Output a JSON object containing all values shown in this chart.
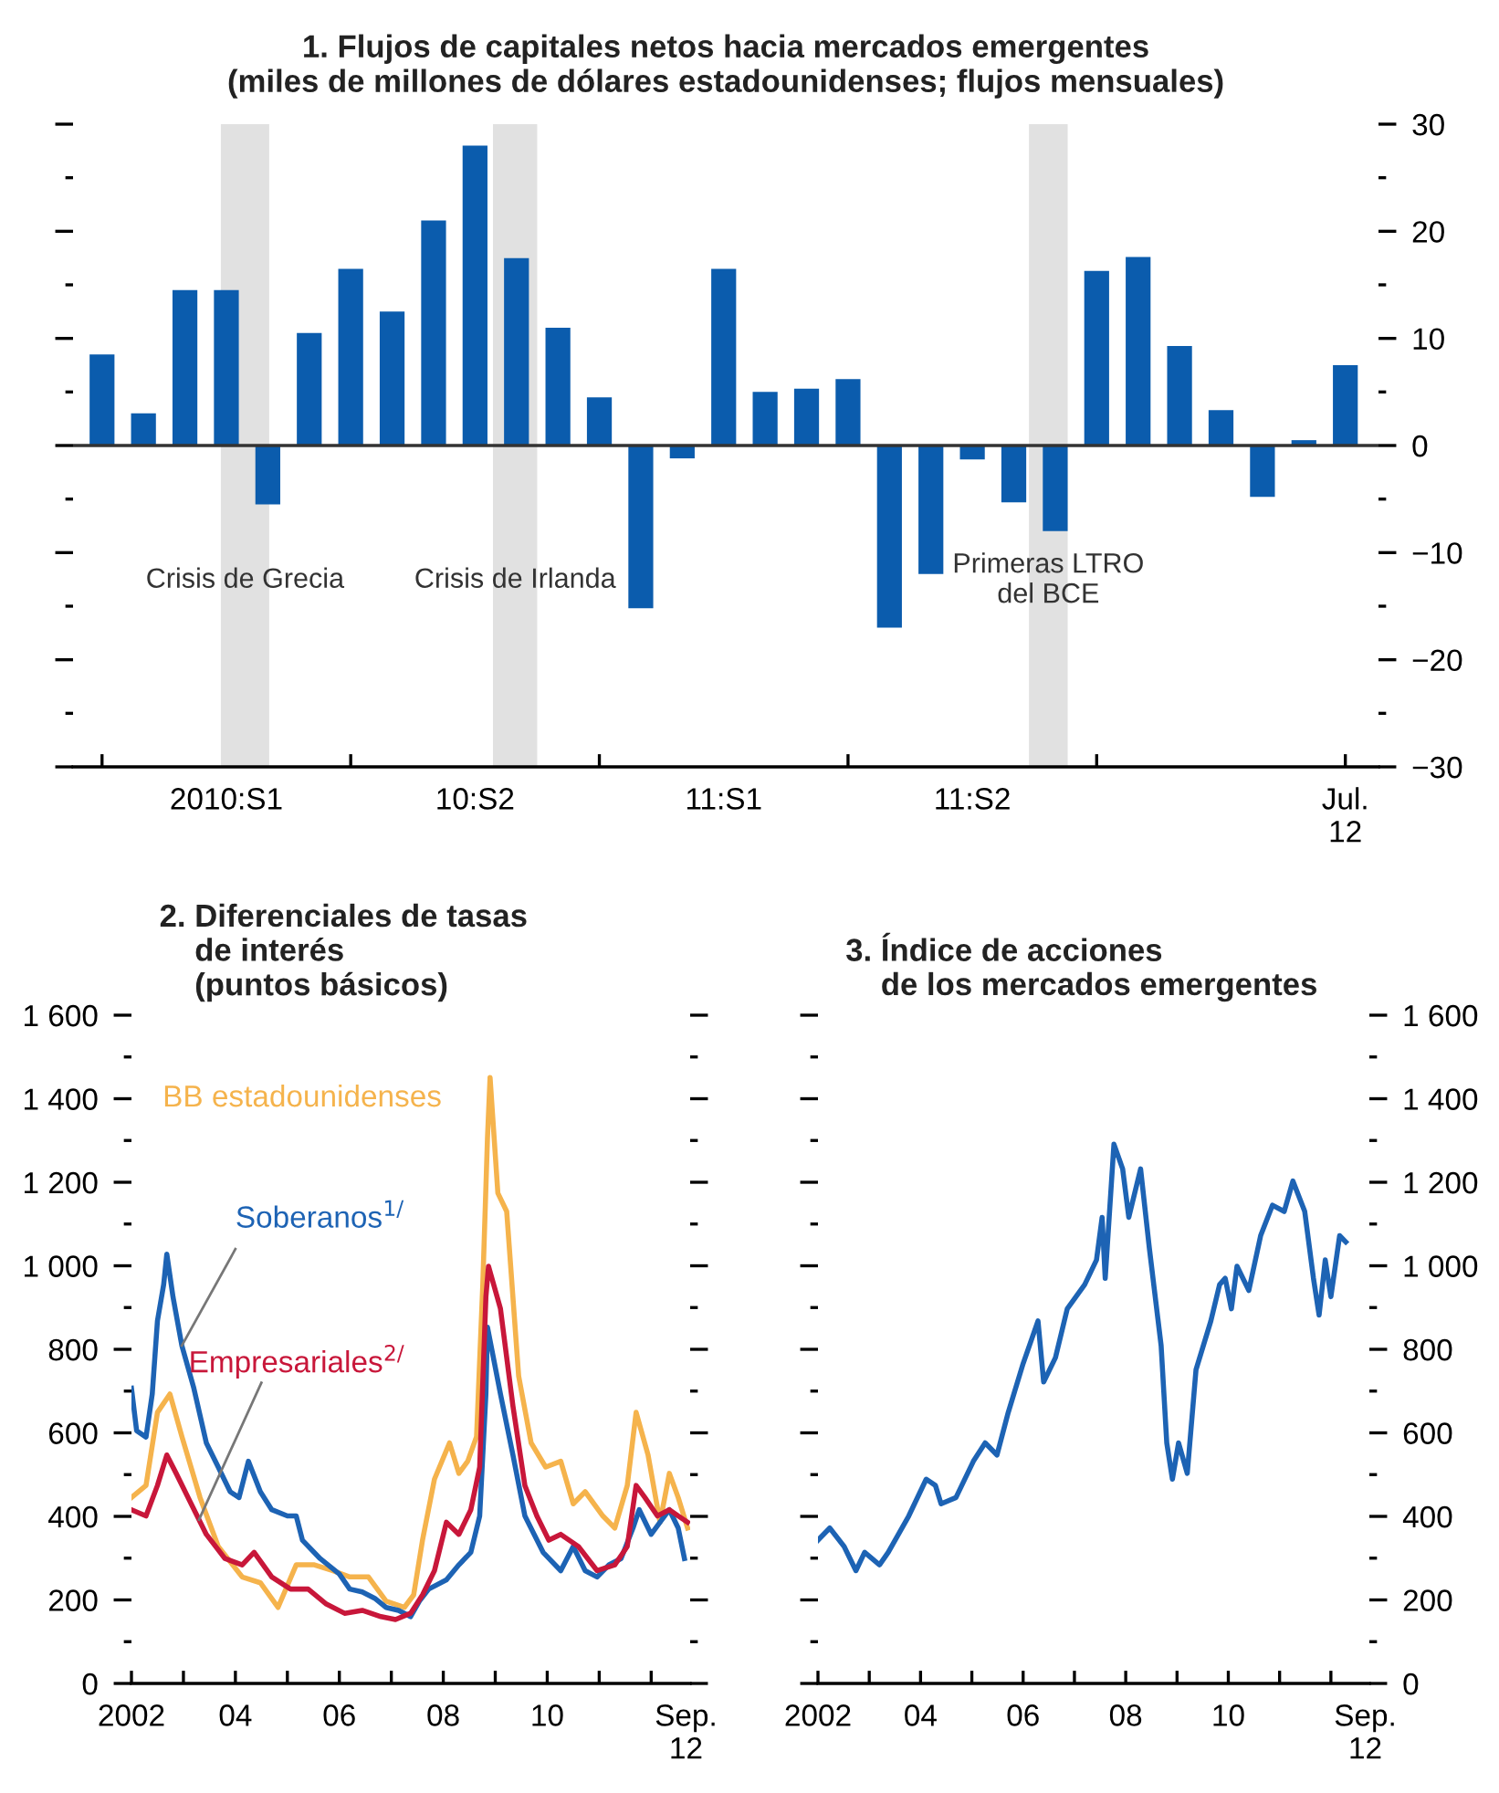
{
  "chart_data": [
    {
      "type": "bar",
      "title": "1. Flujos de capitales netos hacia mercados emergentes\n(miles de millones de dólares estadounidenses; flujos mensuales)",
      "x": [
        "2010-01",
        "2010-02",
        "2010-03",
        "2010-04",
        "2010-05",
        "2010-06",
        "2010-07",
        "2010-08",
        "2010-09",
        "2010-10",
        "2010-11",
        "2010-12",
        "2011-01",
        "2011-02",
        "2011-03",
        "2011-04",
        "2011-05",
        "2011-06",
        "2011-07",
        "2011-08",
        "2011-09",
        "2011-10",
        "2011-11",
        "2011-12",
        "2012-01",
        "2012-02",
        "2012-03",
        "2012-04",
        "2012-05",
        "2012-06",
        "2012-07"
      ],
      "values": [
        8.5,
        3,
        14.5,
        14.5,
        -5.5,
        10.5,
        16.5,
        12.5,
        21,
        28,
        17.5,
        11,
        4.5,
        -15.2,
        -1.2,
        16.5,
        5,
        5.3,
        6.2,
        -17,
        -12,
        -1.3,
        -5.3,
        -8,
        16.3,
        17.6,
        9.3,
        3.3,
        -4.8,
        0.5,
        7.5
      ],
      "color": "#0b5cad",
      "xlim": [
        "2009-12-10",
        "2012-07-25"
      ],
      "xticks": [
        {
          "value": "2010-01",
          "label": null
        },
        {
          "value": "2010-07",
          "label": null
        },
        {
          "value": "2011-01",
          "label": null
        },
        {
          "value": "2011-07",
          "label": null
        },
        {
          "value": "2012-01",
          "label": null
        },
        {
          "value": "2012-07",
          "label": null
        },
        {
          "value": "2010-04",
          "label": "2010:S1"
        },
        {
          "value": "2010-10",
          "label": "10:S2"
        },
        {
          "value": "2011-04",
          "label": "11:S1"
        },
        {
          "value": "2011-10",
          "label": "11:S2"
        },
        {
          "value": "2012-07",
          "label": "Jul.\n12"
        }
      ],
      "ylim": [
        -30,
        30
      ],
      "yticks": [
        {
          "value": 30,
          "label": "30"
        },
        {
          "value": 25,
          "label": null
        },
        {
          "value": 20,
          "label": "20"
        },
        {
          "value": 15,
          "label": null
        },
        {
          "value": 10,
          "label": "10"
        },
        {
          "value": 5,
          "label": null
        },
        {
          "value": 0,
          "label": "0"
        },
        {
          "value": -5,
          "label": null
        },
        {
          "value": -10,
          "label": "−10"
        },
        {
          "value": -15,
          "label": null
        },
        {
          "value": -20,
          "label": "−20"
        },
        {
          "value": -25,
          "label": null
        },
        {
          "value": -30,
          "label": "−30"
        }
      ],
      "ref_lines": [
        {
          "axis": "y",
          "value": 0,
          "color": "#333333"
        }
      ],
      "bands": [
        {
          "axis": "x",
          "from": "2010-03-27",
          "to": "2010-05-02",
          "label": "Crisis de Grecia",
          "color": "#e1e1e1"
        },
        {
          "axis": "x",
          "from": "2010-10-14",
          "to": "2010-11-16",
          "label": "Crisis de Irlanda",
          "color": "#e1e1e1"
        },
        {
          "axis": "x",
          "from": "2011-11-12",
          "to": "2011-12-10",
          "label": "Primeras LTRO\ndel BCE",
          "color": "#e1e1e1"
        }
      ]
    },
    {
      "type": "line",
      "title": "2. Diferenciales de tasas\n    de interés\n    (puntos básicos)",
      "xlim": [
        2002,
        2012.75
      ],
      "xticks": [
        {
          "value": 2002,
          "label": null
        },
        {
          "value": 2003,
          "label": null
        },
        {
          "value": 2004,
          "label": null
        },
        {
          "value": 2005,
          "label": null
        },
        {
          "value": 2006,
          "label": null
        },
        {
          "value": 2007,
          "label": null
        },
        {
          "value": 2008,
          "label": null
        },
        {
          "value": 2009,
          "label": null
        },
        {
          "value": 2010,
          "label": null
        },
        {
          "value": 2011,
          "label": null
        },
        {
          "value": 2012,
          "label": null
        },
        {
          "value": 2002,
          "label": "2002"
        },
        {
          "value": 2004,
          "label": "04"
        },
        {
          "value": 2006,
          "label": "06"
        },
        {
          "value": 2008,
          "label": "08"
        },
        {
          "value": 2010,
          "label": "10"
        },
        {
          "value": 2012.67,
          "label": "Sep.\n12"
        }
      ],
      "ylim": [
        0,
        1600
      ],
      "yticks": [
        {
          "value": 0,
          "label": "0"
        },
        {
          "value": 100,
          "label": null
        },
        {
          "value": 200,
          "label": "200"
        },
        {
          "value": 300,
          "label": null
        },
        {
          "value": 400,
          "label": "400"
        },
        {
          "value": 500,
          "label": null
        },
        {
          "value": 600,
          "label": "600"
        },
        {
          "value": 700,
          "label": null
        },
        {
          "value": 800,
          "label": "800"
        },
        {
          "value": 900,
          "label": null
        },
        {
          "value": 1000,
          "label": "1 000"
        },
        {
          "value": 1100,
          "label": null
        },
        {
          "value": 1200,
          "label": "1 200"
        },
        {
          "value": 1300,
          "label": null
        },
        {
          "value": 1400,
          "label": "1 400"
        },
        {
          "value": 1500,
          "label": null
        },
        {
          "value": 1600,
          "label": "1 600"
        }
      ],
      "series": [
        {
          "name": "BB estadounidenses",
          "color": "#f5b34c",
          "x": [
            2002.0,
            2002.28,
            2002.5,
            2002.74,
            2002.97,
            2003.32,
            2003.67,
            2004.13,
            2004.48,
            2004.82,
            2005.17,
            2005.52,
            2005.87,
            2006.2,
            2006.56,
            2006.9,
            2007.25,
            2007.43,
            2007.6,
            2007.83,
            2008.12,
            2008.3,
            2008.47,
            2008.64,
            2008.76,
            2008.85,
            2008.9,
            2009.05,
            2009.22,
            2009.45,
            2009.69,
            2009.97,
            2010.26,
            2010.5,
            2010.73,
            2011.07,
            2011.3,
            2011.54,
            2011.71,
            2011.94,
            2012.17,
            2012.35,
            2012.52,
            2012.7
          ],
          "values": [
            445,
            474,
            649,
            693,
            591,
            445,
            328,
            255,
            241,
            182,
            284,
            284,
            270,
            255,
            255,
            197,
            182,
            212,
            343,
            489,
            576,
            503,
            532,
            591,
            955,
            1305,
            1451,
            1174,
            1130,
            736,
            576,
            518,
            532,
            430,
            459,
            401,
            372,
            474,
            649,
            547,
            386,
            503,
            445,
            372
          ]
        },
        {
          "name": "Soberanos$^{1/}$",
          "color": "#1d63b4",
          "x": [
            2002.0,
            2002.1,
            2002.28,
            2002.4,
            2002.5,
            2002.62,
            2002.68,
            2002.8,
            2002.97,
            2003.2,
            2003.44,
            2003.67,
            2003.9,
            2004.07,
            2004.25,
            2004.48,
            2004.7,
            2005.0,
            2005.17,
            2005.29,
            2005.63,
            2006.0,
            2006.2,
            2006.44,
            2006.68,
            2006.9,
            2007.14,
            2007.37,
            2007.54,
            2007.72,
            2008.06,
            2008.3,
            2008.53,
            2008.7,
            2008.82,
            2008.85,
            2009.1,
            2009.34,
            2009.57,
            2009.92,
            2010.26,
            2010.5,
            2010.73,
            2010.96,
            2011.19,
            2011.42,
            2011.65,
            2011.77,
            2012.0,
            2012.17,
            2012.35,
            2012.52,
            2012.64
          ],
          "values": [
            707,
            605,
            590,
            693,
            868,
            955,
            1028,
            925,
            809,
            707,
            576,
            518,
            459,
            445,
            532,
            459,
            416,
            401,
            401,
            343,
            299,
            262,
            226,
            219,
            204,
            182,
            175,
            160,
            197,
            226,
            248,
            284,
            314,
            401,
            693,
            853,
            693,
            547,
            401,
            314,
            270,
            328,
            270,
            255,
            284,
            299,
            372,
            416,
            357,
            386,
            416,
            372,
            299
          ]
        },
        {
          "name": "Empresariales$^{2/}$",
          "color": "#c8173a",
          "x": [
            2002.0,
            2002.28,
            2002.5,
            2002.68,
            2002.86,
            2003.09,
            2003.44,
            2003.8,
            2004.13,
            2004.36,
            2004.7,
            2005.06,
            2005.4,
            2005.75,
            2006.1,
            2006.44,
            2006.8,
            2007.08,
            2007.37,
            2007.6,
            2007.83,
            2008.06,
            2008.3,
            2008.53,
            2008.7,
            2008.82,
            2008.87,
            2009.1,
            2009.34,
            2009.57,
            2009.8,
            2010.03,
            2010.26,
            2010.6,
            2010.96,
            2011.3,
            2011.54,
            2011.71,
            2011.88,
            2012.12,
            2012.35,
            2012.52,
            2012.7
          ],
          "values": [
            416,
            401,
            474,
            547,
            503,
            445,
            357,
            299,
            284,
            314,
            255,
            226,
            226,
            190,
            168,
            175,
            160,
            153,
            168,
            212,
            270,
            386,
            357,
            416,
            518,
            926,
            999,
            897,
            664,
            474,
            401,
            343,
            357,
            328,
            270,
            284,
            328,
            474,
            445,
            401,
            416,
            401,
            386
          ]
        }
      ]
    },
    {
      "type": "line",
      "title": "3. Índice de acciones\n    de los mercados emergentes",
      "xlim": [
        2002,
        2012.75
      ],
      "xticks": [
        {
          "value": 2002,
          "label": null
        },
        {
          "value": 2003,
          "label": null
        },
        {
          "value": 2004,
          "label": null
        },
        {
          "value": 2005,
          "label": null
        },
        {
          "value": 2006,
          "label": null
        },
        {
          "value": 2007,
          "label": null
        },
        {
          "value": 2008,
          "label": null
        },
        {
          "value": 2009,
          "label": null
        },
        {
          "value": 2010,
          "label": null
        },
        {
          "value": 2011,
          "label": null
        },
        {
          "value": 2012,
          "label": null
        },
        {
          "value": 2002,
          "label": "2002"
        },
        {
          "value": 2004,
          "label": "04"
        },
        {
          "value": 2006,
          "label": "06"
        },
        {
          "value": 2008,
          "label": "08"
        },
        {
          "value": 2010,
          "label": "10"
        },
        {
          "value": 2012.67,
          "label": "Sep.\n12"
        }
      ],
      "ylim": [
        0,
        1600
      ],
      "yticks": [
        {
          "value": 0,
          "label": "0"
        },
        {
          "value": 100,
          "label": null
        },
        {
          "value": 200,
          "label": "200"
        },
        {
          "value": 300,
          "label": null
        },
        {
          "value": 400,
          "label": "400"
        },
        {
          "value": 500,
          "label": null
        },
        {
          "value": 600,
          "label": "600"
        },
        {
          "value": 700,
          "label": null
        },
        {
          "value": 800,
          "label": "800"
        },
        {
          "value": 900,
          "label": null
        },
        {
          "value": 1000,
          "label": "1 000"
        },
        {
          "value": 1100,
          "label": null
        },
        {
          "value": 1200,
          "label": "1 200"
        },
        {
          "value": 1300,
          "label": null
        },
        {
          "value": 1400,
          "label": "1 400"
        },
        {
          "value": 1500,
          "label": null
        },
        {
          "value": 1600,
          "label": "1 600"
        }
      ],
      "series": [
        {
          "color": "#1d63b4",
          "x": [
            2002.0,
            2002.23,
            2002.51,
            2002.74,
            2002.91,
            2003.2,
            2003.37,
            2003.77,
            2004.11,
            2004.29,
            2004.4,
            2004.69,
            2005.03,
            2005.26,
            2005.49,
            2005.71,
            2006.0,
            2006.29,
            2006.4,
            2006.63,
            2006.86,
            2007.03,
            2007.2,
            2007.43,
            2007.54,
            2007.6,
            2007.77,
            2007.94,
            2008.06,
            2008.29,
            2008.46,
            2008.69,
            2008.8,
            2008.91,
            2009.03,
            2009.2,
            2009.37,
            2009.66,
            2009.83,
            2009.94,
            2010.06,
            2010.17,
            2010.4,
            2010.63,
            2010.86,
            2011.09,
            2011.26,
            2011.49,
            2011.66,
            2011.77,
            2011.89,
            2012.0,
            2012.17,
            2012.29
          ],
          "values": [
            343,
            372,
            328,
            270,
            314,
            284,
            314,
            401,
            489,
            474,
            430,
            445,
            532,
            576,
            547,
            649,
            766,
            868,
            722,
            780,
            897,
            926,
            955,
            1014,
            1116,
            970,
            1291,
            1232,
            1116,
            1232,
            1043,
            809,
            576,
            489,
            576,
            503,
            751,
            868,
            955,
            970,
            897,
            999,
            941,
            1072,
            1145,
            1130,
            1203,
            1130,
            970,
            882,
            1014,
            926,
            1072,
            1057
          ]
        }
      ]
    }
  ]
}
